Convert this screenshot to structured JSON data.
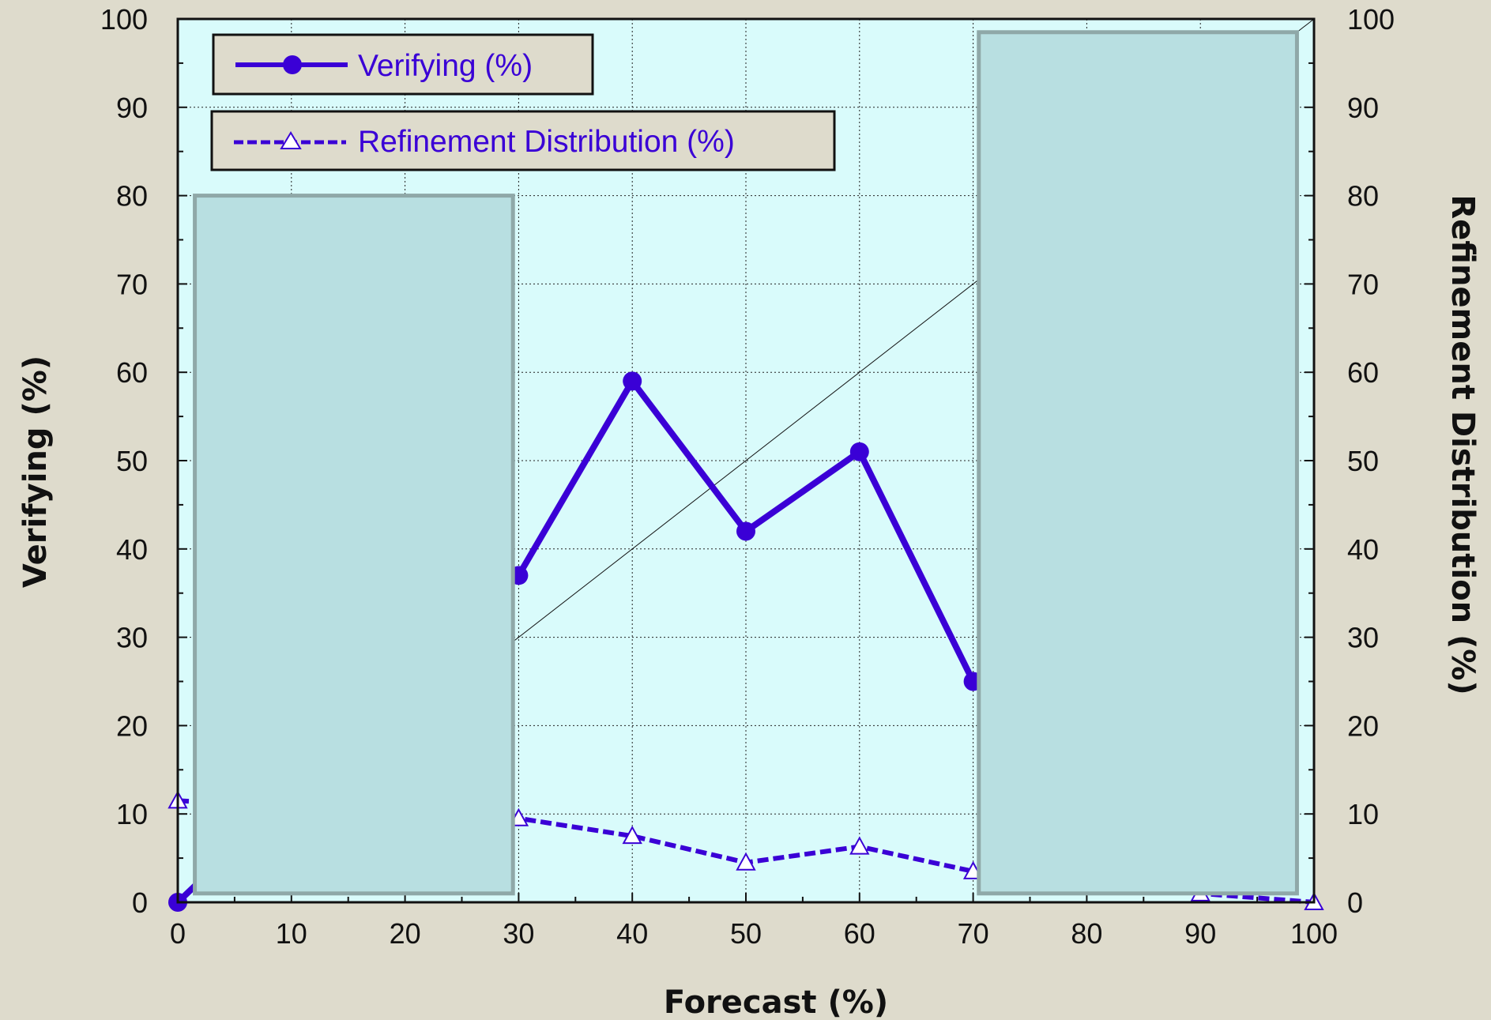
{
  "chart_data": {
    "type": "line",
    "xlabel": "Forecast (%)",
    "ylabel": "Verifying (%)",
    "y2label": "Refinement Distribution (%)",
    "xlim": [
      0,
      100
    ],
    "ylim": [
      0,
      100
    ],
    "y2lim": [
      0,
      100
    ],
    "xticks": [
      0,
      10,
      20,
      30,
      40,
      50,
      60,
      70,
      80,
      90,
      100
    ],
    "yticks": [
      0,
      10,
      20,
      30,
      40,
      50,
      60,
      70,
      80,
      90,
      100
    ],
    "grid": true,
    "legend": "top-left",
    "diagonal_reference": [
      [
        0,
        0
      ],
      [
        100,
        100
      ]
    ],
    "series": [
      {
        "name": "Verifying (%)",
        "axis": "left",
        "style": "solid-circle",
        "color": "#3a00d6",
        "x": [
          0,
          30,
          40,
          50,
          60,
          70
        ],
        "y": [
          0,
          37,
          59,
          42,
          51,
          25
        ]
      },
      {
        "name": "Refinement Distribution (%)",
        "axis": "right",
        "style": "dashed-triangle",
        "color": "#3a00d6",
        "x": [
          0,
          30,
          40,
          50,
          60,
          70,
          90,
          100
        ],
        "y": [
          11.5,
          9.5,
          7.5,
          4.5,
          6.3,
          3.5,
          1.0,
          0
        ]
      }
    ],
    "masking_boxes": [
      {
        "x0": 1.5,
        "x1": 29.5,
        "y0": 1,
        "y1": 80
      },
      {
        "x0": 70.5,
        "x1": 98.5,
        "y0": 1,
        "y1": 98.5
      }
    ]
  },
  "colors": {
    "background": "#dedbcc",
    "plot_area": "#d9fbfb",
    "series": "#3a00d6",
    "mask_fill": "#b8dfe1",
    "mask_border": "#8fa8a8",
    "legend_fill": "#dedbcc"
  }
}
